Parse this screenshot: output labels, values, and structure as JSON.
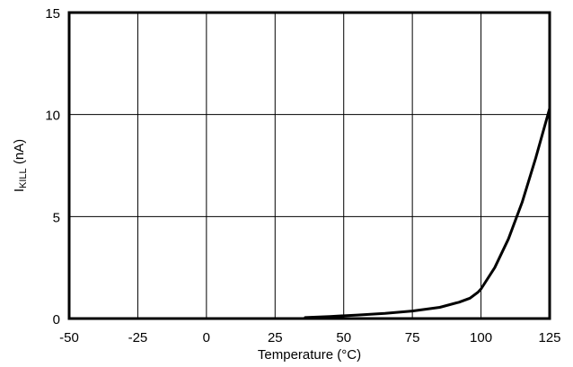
{
  "chart_data": {
    "type": "line",
    "title": "",
    "xlabel": "Temperature (°C)",
    "ylabel": {
      "base": "I",
      "subscript": "KILL",
      "suffix": " (nA)"
    },
    "xlim": [
      -50,
      125
    ],
    "ylim": [
      0,
      15
    ],
    "x_ticks": [
      -50,
      -25,
      0,
      25,
      50,
      75,
      100,
      125
    ],
    "y_ticks": [
      0,
      5,
      10,
      15
    ],
    "grid": true,
    "legend": "none",
    "series": [
      {
        "color": "#000000",
        "x": [
          36,
          45,
          55,
          65,
          75,
          85,
          92,
          96,
          99,
          100,
          105,
          110,
          115,
          120,
          125
        ],
        "y": [
          0.05,
          0.1,
          0.17,
          0.25,
          0.37,
          0.55,
          0.8,
          1.0,
          1.3,
          1.45,
          2.5,
          3.9,
          5.7,
          7.9,
          10.3
        ]
      }
    ]
  }
}
